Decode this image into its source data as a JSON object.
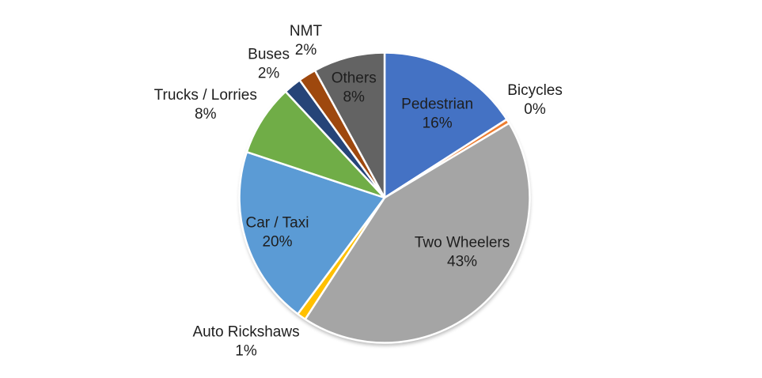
{
  "chart_data": {
    "type": "pie",
    "title": "",
    "legend": "none",
    "label_style": "category name + percentage",
    "start_angle_deg": 0,
    "direction": "clockwise",
    "background": "#ffffff",
    "slices": [
      {
        "name": "Pedestrian",
        "value": 16,
        "pct_label": "16%",
        "color": "#4472C4",
        "label_placement": "inside"
      },
      {
        "name": "Bicycles",
        "value": 0,
        "pct_label": "0%",
        "color": "#ED7D31",
        "label_placement": "outside"
      },
      {
        "name": "Two Wheelers",
        "value": 43,
        "pct_label": "43%",
        "color": "#A5A5A5",
        "label_placement": "inside"
      },
      {
        "name": "Auto Rickshaws",
        "value": 1,
        "pct_label": "1%",
        "color": "#FFC000",
        "label_placement": "outside"
      },
      {
        "name": "Car / Taxi",
        "value": 20,
        "pct_label": "20%",
        "color": "#5B9BD5",
        "label_placement": "inside"
      },
      {
        "name": "Trucks / Lorries",
        "value": 8,
        "pct_label": "8%",
        "color": "#70AD47",
        "label_placement": "outside"
      },
      {
        "name": "Buses",
        "value": 2,
        "pct_label": "2%",
        "color": "#264478",
        "label_placement": "outside"
      },
      {
        "name": "NMT",
        "value": 2,
        "pct_label": "2%",
        "color": "#9E480E",
        "label_placement": "outside"
      },
      {
        "name": "Others",
        "value": 8,
        "pct_label": "8%",
        "color": "#636363",
        "label_placement": "inside"
      }
    ]
  }
}
